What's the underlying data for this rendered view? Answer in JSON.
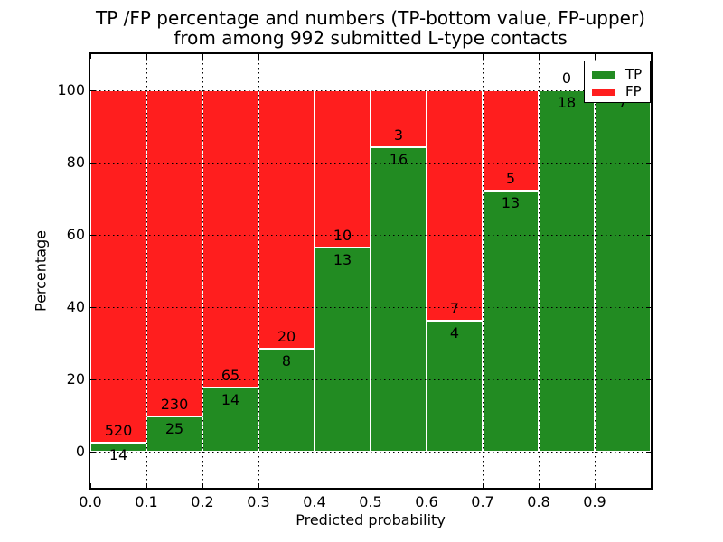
{
  "title": {
    "line1": "TP /FP percentage and numbers (TP-bottom value, FP-upper)",
    "line2": "from among 992 submitted L-type contacts"
  },
  "chart_data": {
    "type": "bar",
    "subtype": "stacked-100-percent",
    "title": "TP /FP percentage and numbers (TP-bottom value, FP-upper) from among 992 submitted L-type contacts",
    "total_submitted": 992,
    "bin_edges": [
      0.0,
      0.1,
      0.2,
      0.3,
      0.4,
      0.5,
      0.6,
      0.7,
      0.8,
      0.9,
      1.0
    ],
    "series": [
      {
        "name": "TP",
        "color": "#228b22",
        "counts": [
          14,
          25,
          14,
          8,
          13,
          16,
          4,
          13,
          18,
          7
        ]
      },
      {
        "name": "FP",
        "color": "#ff1e1e",
        "counts": [
          520,
          230,
          65,
          20,
          10,
          3,
          7,
          5,
          0,
          0
        ]
      }
    ],
    "tp_percent_of_bin": [
      2.6,
      9.8,
      17.7,
      28.6,
      56.5,
      84.2,
      36.4,
      72.2,
      100.0,
      100.0
    ],
    "xlabel": "Predicted probability",
    "ylabel": "Percentage",
    "xticks": [
      "0.0",
      "0.1",
      "0.2",
      "0.3",
      "0.4",
      "0.5",
      "0.6",
      "0.7",
      "0.8",
      "0.9"
    ],
    "yticks": [
      0,
      20,
      40,
      60,
      80,
      100
    ],
    "xlim": [
      0.0,
      1.0
    ],
    "ylim": [
      -10,
      110
    ],
    "grid": {
      "style": "dotted",
      "color": "#000000"
    },
    "legend": {
      "position": "upper right",
      "entries": [
        {
          "label": "TP",
          "color": "#228b22"
        },
        {
          "label": "FP",
          "color": "#ff1e1e"
        }
      ]
    }
  }
}
